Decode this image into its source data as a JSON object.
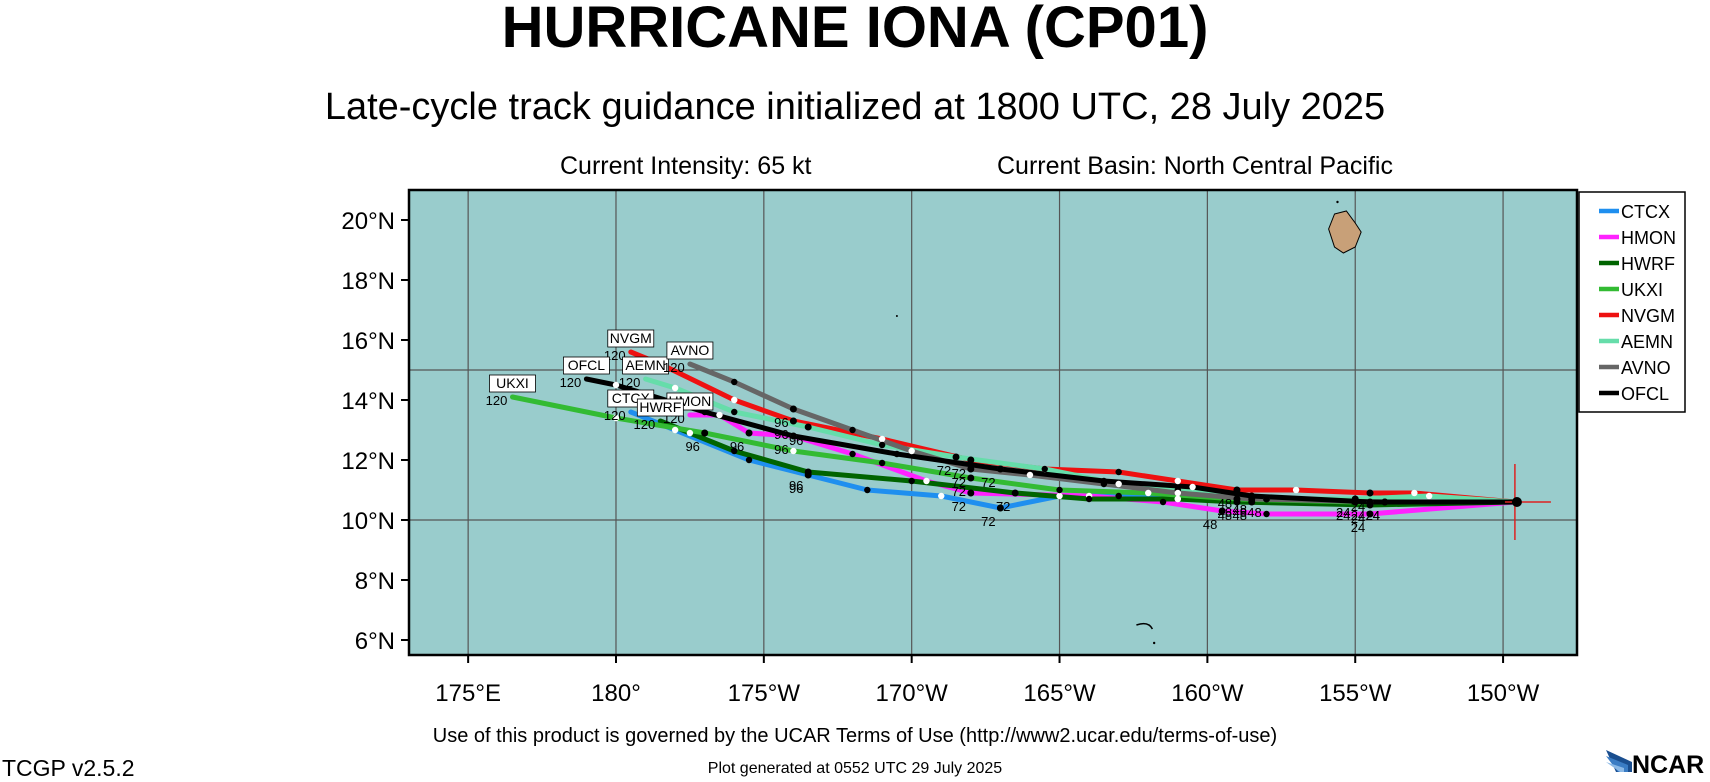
{
  "header": {
    "title": "HURRICANE IONA (CP01)",
    "subtitle": "Late-cycle track guidance initialized at 1800 UTC, 28 July 2025",
    "intensity": "Current Intensity: 65 kt",
    "basin": "Current Basin: North Central Pacific"
  },
  "footer": {
    "terms": "Use of this product is governed by the UCAR Terms of Use (http://www2.ucar.edu/terms-of-use)",
    "version": "TCGP v2.5.2",
    "generated": "Plot generated at 0552 UTC   29 July 2025",
    "logo_text": "NCAR"
  },
  "map": {
    "lon_range": [
      173.0,
      212.5
    ],
    "lat_range": [
      5.5,
      21.0
    ],
    "lon_ticks": [
      {
        "lon": 175,
        "label": "175°E"
      },
      {
        "lon": 180,
        "label": "180°"
      },
      {
        "lon": 185,
        "label": "175°W"
      },
      {
        "lon": 190,
        "label": "170°W"
      },
      {
        "lon": 195,
        "label": "165°W"
      },
      {
        "lon": 200,
        "label": "160°W"
      },
      {
        "lon": 205,
        "label": "155°W"
      },
      {
        "lon": 210,
        "label": "150°W"
      }
    ],
    "lat_ticks": [
      {
        "lat": 20,
        "label": "20°N"
      },
      {
        "lat": 18,
        "label": "18°N"
      },
      {
        "lat": 16,
        "label": "16°N"
      },
      {
        "lat": 14,
        "label": "14°N"
      },
      {
        "lat": 12,
        "label": "12°N"
      },
      {
        "lat": 10,
        "label": "10°N"
      },
      {
        "lat": 8,
        "label": "8°N"
      },
      {
        "lat": 6,
        "label": "6°N"
      }
    ],
    "gridlines": {
      "lon": [
        175,
        180,
        185,
        190,
        195,
        200,
        205,
        210
      ],
      "lat": [
        10,
        15
      ]
    },
    "ocean_color": "#99cccc",
    "land_color": "#c8a078",
    "storm_position": {
      "lon": 210.4,
      "lat": 10.6
    },
    "storm_marker_color": "#dd2222"
  },
  "legend": {
    "position": "right",
    "items": [
      {
        "name": "CTCX",
        "color": "#1f8fef"
      },
      {
        "name": "HMON",
        "color": "#ff22ff"
      },
      {
        "name": "HWRF",
        "color": "#006400"
      },
      {
        "name": "UKXI",
        "color": "#33bb33"
      },
      {
        "name": "NVGM",
        "color": "#ee1111"
      },
      {
        "name": "AEMN",
        "color": "#66ddaa"
      },
      {
        "name": "AVNO",
        "color": "#666666"
      },
      {
        "name": "OFCL",
        "color": "#000000"
      }
    ]
  },
  "tracks": [
    {
      "name": "CTCX",
      "color": "#1f8fef",
      "end_label": "120",
      "points": [
        [
          210.4,
          10.6
        ],
        [
          206.0,
          10.6
        ],
        [
          201.5,
          10.6
        ],
        [
          199.0,
          10.7
        ],
        [
          197.0,
          10.8
        ],
        [
          195.0,
          10.8
        ],
        [
          193.0,
          10.4
        ],
        [
          191.0,
          10.8
        ],
        [
          188.5,
          11.0
        ],
        [
          186.5,
          11.5
        ],
        [
          184.5,
          12.0
        ],
        [
          182.0,
          13.0
        ],
        [
          180.5,
          13.6
        ]
      ],
      "markers": [
        {
          "lon": 206.0,
          "lat": 10.6,
          "label": "24"
        },
        {
          "lon": 201.5,
          "lat": 10.6,
          "label": "48"
        },
        {
          "lon": 193.0,
          "lat": 10.4,
          "label": "72"
        },
        {
          "lon": 186.5,
          "lat": 11.5,
          "label": "96"
        }
      ]
    },
    {
      "name": "HMON",
      "color": "#ff22ff",
      "end_label": "120",
      "points": [
        [
          210.4,
          10.6
        ],
        [
          205.5,
          10.2
        ],
        [
          202.0,
          10.2
        ],
        [
          200.5,
          10.3
        ],
        [
          198.5,
          10.6
        ],
        [
          196.0,
          10.8
        ],
        [
          192.0,
          10.9
        ],
        [
          190.5,
          11.3
        ],
        [
          188.0,
          12.2
        ],
        [
          186.0,
          12.8
        ],
        [
          184.5,
          12.9
        ],
        [
          183.5,
          13.5
        ],
        [
          182.5,
          13.5
        ]
      ],
      "markers": [
        {
          "lon": 205.5,
          "lat": 10.2,
          "label": "24"
        },
        {
          "lon": 200.5,
          "lat": 10.3,
          "label": "48"
        },
        {
          "lon": 192.0,
          "lat": 10.9,
          "label": "72"
        },
        {
          "lon": 184.5,
          "lat": 12.9,
          "label": "96"
        }
      ]
    },
    {
      "name": "HWRF",
      "color": "#006400",
      "end_label": "120",
      "points": [
        [
          210.4,
          10.6
        ],
        [
          205.5,
          10.5
        ],
        [
          201.0,
          10.6
        ],
        [
          199.0,
          10.7
        ],
        [
          196.0,
          10.7
        ],
        [
          193.5,
          10.9
        ],
        [
          190.0,
          11.3
        ],
        [
          186.5,
          11.6
        ],
        [
          184.0,
          12.3
        ],
        [
          182.5,
          12.9
        ],
        [
          181.5,
          13.3
        ]
      ],
      "markers": [
        {
          "lon": 205.5,
          "lat": 10.5,
          "label": "24"
        },
        {
          "lon": 201.0,
          "lat": 10.6,
          "label": "48"
        },
        {
          "lon": 193.5,
          "lat": 10.9,
          "label": "72"
        },
        {
          "lon": 186.5,
          "lat": 11.6,
          "label": "96"
        }
      ]
    },
    {
      "name": "UKXI",
      "color": "#33bb33",
      "end_label": "120",
      "points": [
        [
          210.4,
          10.6
        ],
        [
          205.0,
          10.6
        ],
        [
          201.0,
          10.7
        ],
        [
          198.0,
          10.9
        ],
        [
          195.0,
          11.0
        ],
        [
          192.0,
          11.4
        ],
        [
          189.0,
          11.9
        ],
        [
          186.0,
          12.3
        ],
        [
          183.0,
          12.9
        ],
        [
          180.0,
          13.4
        ],
        [
          176.5,
          14.1
        ]
      ],
      "markers": [
        {
          "lon": 205.0,
          "lat": 10.6,
          "label": "24"
        },
        {
          "lon": 201.0,
          "lat": 10.7,
          "label": "48"
        },
        {
          "lon": 192.0,
          "lat": 11.4,
          "label": "72"
        },
        {
          "lon": 183.0,
          "lat": 12.9,
          "label": "96"
        }
      ]
    },
    {
      "name": "NVGM",
      "color": "#ee1111",
      "end_label": "120",
      "points": [
        [
          210.4,
          10.6
        ],
        [
          207.0,
          10.9
        ],
        [
          205.5,
          10.9
        ],
        [
          203.0,
          11.0
        ],
        [
          201.0,
          11.0
        ],
        [
          199.0,
          11.3
        ],
        [
          197.0,
          11.6
        ],
        [
          194.5,
          11.7
        ],
        [
          192.0,
          12.0
        ],
        [
          189.0,
          12.7
        ],
        [
          186.0,
          13.3
        ],
        [
          184.0,
          14.0
        ],
        [
          181.5,
          15.2
        ],
        [
          180.5,
          15.6
        ]
      ],
      "markers": [
        {
          "lon": 205.5,
          "lat": 10.9,
          "label": "24"
        },
        {
          "lon": 201.0,
          "lat": 11.0,
          "label": "48"
        },
        {
          "lon": 192.0,
          "lat": 12.0,
          "label": "72"
        },
        {
          "lon": 186.0,
          "lat": 13.3,
          "label": "96"
        }
      ]
    },
    {
      "name": "AEMN",
      "color": "#66ddaa",
      "end_label": "120",
      "points": [
        [
          210.4,
          10.6
        ],
        [
          207.5,
          10.8
        ],
        [
          205.0,
          10.7
        ],
        [
          202.0,
          10.7
        ],
        [
          199.0,
          11.0
        ],
        [
          197.0,
          11.2
        ],
        [
          194.5,
          11.7
        ],
        [
          191.5,
          12.1
        ],
        [
          189.0,
          12.5
        ],
        [
          186.5,
          13.1
        ],
        [
          184.0,
          13.6
        ],
        [
          182.0,
          14.4
        ],
        [
          181.0,
          14.7
        ]
      ],
      "markers": [
        {
          "lon": 205.0,
          "lat": 10.7,
          "label": "24"
        },
        {
          "lon": 202.0,
          "lat": 10.7,
          "label": "48"
        },
        {
          "lon": 191.5,
          "lat": 12.1,
          "label": "72"
        },
        {
          "lon": 186.5,
          "lat": 13.1,
          "label": "96"
        }
      ]
    },
    {
      "name": "AVNO",
      "color": "#666666",
      "end_label": "120",
      "points": [
        [
          210.4,
          10.6
        ],
        [
          206.0,
          10.6
        ],
        [
          201.5,
          10.7
        ],
        [
          199.0,
          10.9
        ],
        [
          196.5,
          11.2
        ],
        [
          194.0,
          11.5
        ],
        [
          192.0,
          11.7
        ],
        [
          190.0,
          12.3
        ],
        [
          188.0,
          13.0
        ],
        [
          186.0,
          13.7
        ],
        [
          184.0,
          14.6
        ],
        [
          182.5,
          15.2
        ]
      ],
      "markers": [
        {
          "lon": 206.0,
          "lat": 10.6,
          "label": "24"
        },
        {
          "lon": 201.5,
          "lat": 10.7,
          "label": "48"
        },
        {
          "lon": 192.0,
          "lat": 11.7,
          "label": "72"
        },
        {
          "lon": 186.0,
          "lat": 13.7,
          "label": "96"
        }
      ]
    },
    {
      "name": "OFCL",
      "color": "#000000",
      "end_label": "120",
      "points": [
        [
          210.4,
          10.6
        ],
        [
          205.5,
          10.6
        ],
        [
          201.5,
          10.8
        ],
        [
          199.5,
          11.1
        ],
        [
          196.5,
          11.3
        ],
        [
          193.0,
          11.7
        ],
        [
          189.5,
          12.2
        ],
        [
          186.0,
          12.8
        ],
        [
          183.0,
          13.6
        ],
        [
          180.0,
          14.5
        ],
        [
          179.0,
          14.7
        ]
      ],
      "markers": [
        {
          "lon": 205.5,
          "lat": 10.6,
          "label": "24"
        },
        {
          "lon": 201.5,
          "lat": 10.8,
          "label": "48"
        },
        {
          "lon": 193.0,
          "lat": 11.7,
          "label": "72"
        },
        {
          "lon": 186.0,
          "lat": 12.8,
          "label": "96"
        }
      ]
    }
  ]
}
